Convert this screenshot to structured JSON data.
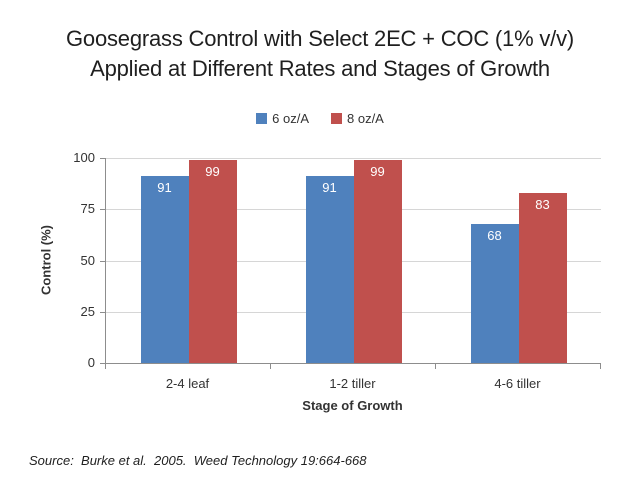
{
  "header": {
    "title_lines": [
      "Goosegrass Control with Select 2EC + COC (1% v/v)",
      "Applied at Different Rates and Stages of Growth"
    ]
  },
  "chart_data": {
    "type": "bar",
    "title": "Goosegrass Control with Select 2EC + COC (1% v/v) Applied at Different Rates and Stages of Growth",
    "categories": [
      "2-4 leaf",
      "1-2 tiller",
      "4-6 tiller"
    ],
    "series": [
      {
        "name": "6 oz/A",
        "color": "#4F81BD",
        "values": [
          91,
          91,
          68
        ]
      },
      {
        "name": "8 oz/A",
        "color": "#C0504D",
        "values": [
          99,
          99,
          83
        ]
      }
    ],
    "xlabel": "Stage of Growth",
    "ylabel": "Control (%)",
    "ylim": [
      0,
      100
    ],
    "yticks": [
      0,
      25,
      50,
      75,
      100
    ],
    "grid": true,
    "legend_position": "top",
    "value_labels": true
  },
  "footer": {
    "source": "Source:  Burke et al.  2005.  Weed Technology 19:664-668"
  }
}
